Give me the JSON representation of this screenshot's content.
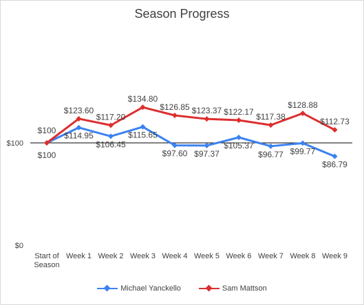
{
  "chart_data": {
    "type": "line",
    "title": "Season Progress",
    "categories": [
      "Start of Season",
      "Week 1",
      "Week 2",
      "Week 3",
      "Week 4",
      "Week 5",
      "Week 6",
      "Week 7",
      "Week 8",
      "Week 9"
    ],
    "category_lines": [
      [
        "Start of",
        "Season"
      ],
      [
        "Week 1"
      ],
      [
        "Week 2"
      ],
      [
        "Week 3"
      ],
      [
        "Week 4"
      ],
      [
        "Week 5"
      ],
      [
        "Week 6"
      ],
      [
        "Week 7"
      ],
      [
        "Week 8"
      ],
      [
        "Week 9"
      ]
    ],
    "y_ticks": [
      {
        "value": 0,
        "label": "$0"
      },
      {
        "value": 100,
        "label": "$100"
      }
    ],
    "ylim": [
      0,
      200
    ],
    "gridline_at": 100,
    "legend_position": "bottom",
    "series": [
      {
        "name": "Michael Yanckello",
        "color": "#3b82f0",
        "values": [
          100,
          114.95,
          106.45,
          115.65,
          97.6,
          97.37,
          105.37,
          96.77,
          99.77,
          86.79
        ],
        "labels": [
          "$100",
          "$114.95",
          "$106.45",
          "$115.65",
          "$97.60",
          "$97.37",
          "$105.37",
          "$96.77",
          "$99.77",
          "$86.79"
        ]
      },
      {
        "name": "Sam Mattson",
        "color": "#dc2e2e",
        "values": [
          100,
          123.6,
          117.2,
          134.8,
          126.85,
          123.37,
          122.17,
          117.38,
          128.88,
          112.73
        ],
        "labels": [
          "$100",
          "$123.60",
          "$117.20",
          "$134.80",
          "$126.85",
          "$123.37",
          "$122.17",
          "$117.38",
          "$128.88",
          "$112.73"
        ]
      }
    ]
  }
}
